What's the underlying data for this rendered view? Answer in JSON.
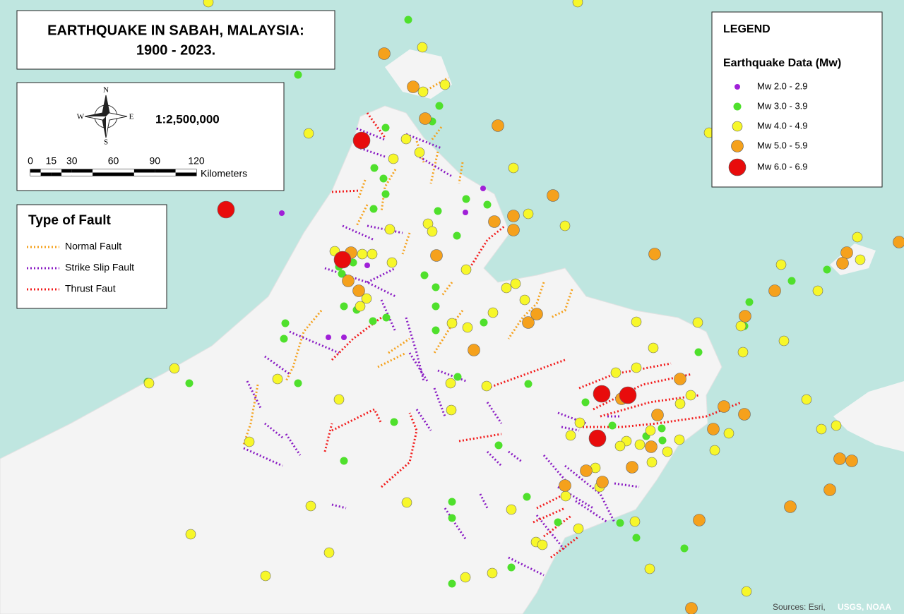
{
  "title": {
    "lines": [
      "EARTHQUAKE IN SABAH, MALAYSIA:",
      "1900 - 2023."
    ]
  },
  "compass": {
    "n": "N",
    "e": "E",
    "s": "S",
    "w": "W"
  },
  "scale": {
    "ratio": "1:2,500,000",
    "ticks": [
      0,
      15,
      30,
      60,
      90,
      120
    ],
    "unit": "Kilometers"
  },
  "fault_legend": {
    "title": "Type of Fault",
    "items": [
      {
        "label": "Normal Fault",
        "color": "#f5a11c"
      },
      {
        "label": "Strike Slip Fault",
        "color": "#8a1cc4"
      },
      {
        "label": "Thrust Faut",
        "color": "#f21c1c"
      }
    ]
  },
  "legend": {
    "title": "LEGEND",
    "subtitle": "Earthquake Data (Mw)",
    "items": [
      {
        "label": "Mw 2.0 - 2.9",
        "color": "#a020d8"
      },
      {
        "label": "Mw 3.0 - 3.9",
        "color": "#4fe02c"
      },
      {
        "label": "Mw 4.0 - 4.9",
        "color": "#f7f72a"
      },
      {
        "label": "Mw 5.0 - 5.9",
        "color": "#f5a11c"
      },
      {
        "label": "Mw 6.0 - 6.9",
        "color": "#e80c0c"
      }
    ]
  },
  "sources": {
    "prefix": "Sources: Esri,",
    "highlight": "USGS, NOAA"
  }
}
